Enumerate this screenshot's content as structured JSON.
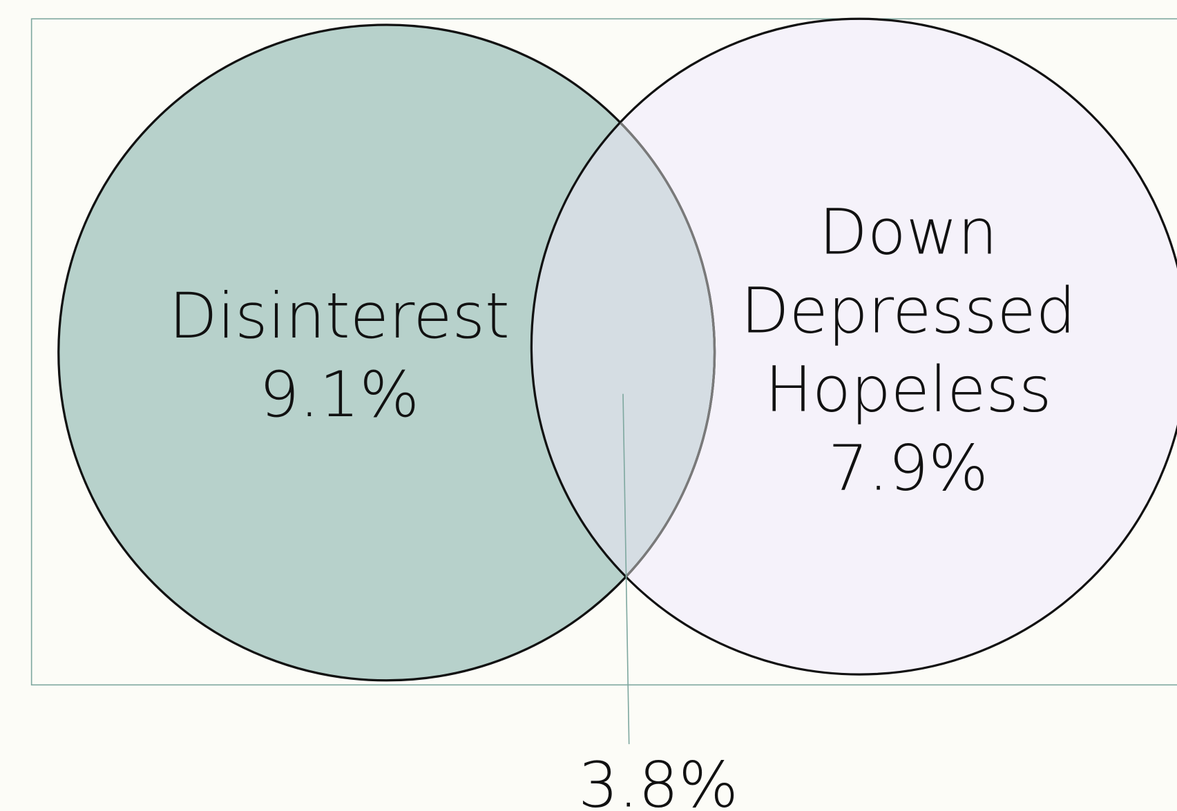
{
  "sets": [
    {
      "lines": [
        "Disinterest"
      ],
      "value_label": "9.1%"
    },
    {
      "lines": [
        "Down",
        "Depressed",
        "Hopeless"
      ],
      "value_label": "7.9%"
    }
  ],
  "intersection": {
    "value_label": "3.8%"
  }
}
